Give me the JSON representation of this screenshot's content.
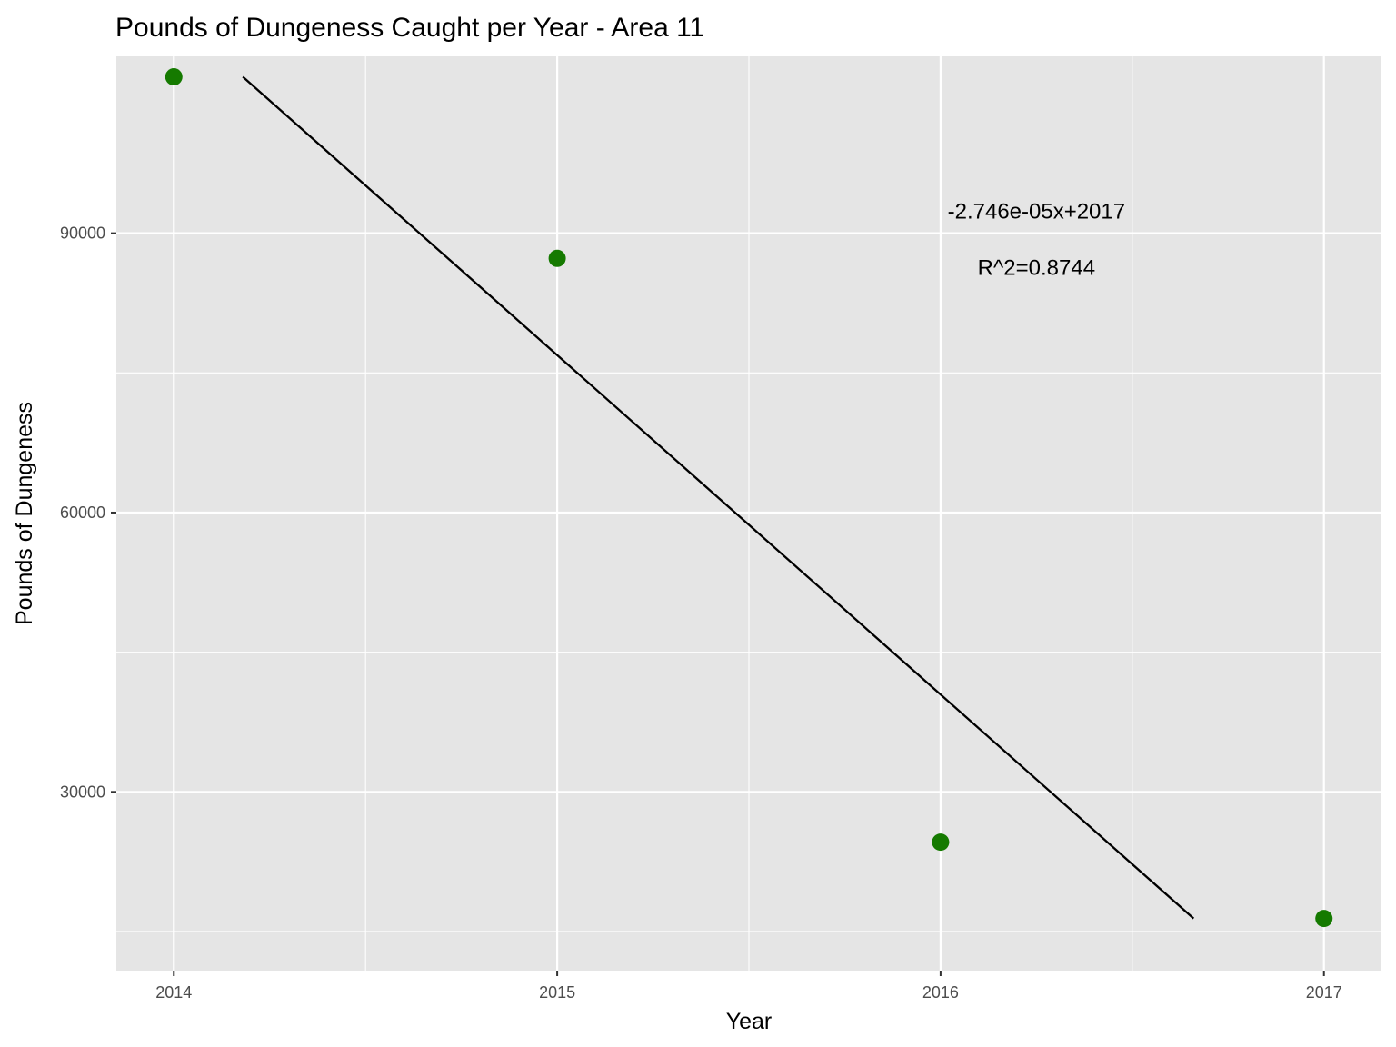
{
  "chart_data": {
    "type": "scatter",
    "title": "Pounds of Dungeness Caught per Year - Area 11",
    "xlabel": "Year",
    "ylabel": "Pounds of Dungeness",
    "x_ticks": [
      2014,
      2015,
      2016,
      2017
    ],
    "y_ticks": [
      30000,
      60000,
      90000
    ],
    "xlim": [
      2013.85,
      2017.15
    ],
    "ylim": [
      10800,
      109000
    ],
    "grid": true,
    "legend": "none",
    "series": [
      {
        "type": "scatter",
        "color": "#157a00",
        "points": [
          {
            "x": 2014,
            "y": 106800
          },
          {
            "x": 2015,
            "y": 87300
          },
          {
            "x": 2016,
            "y": 24600
          },
          {
            "x": 2017,
            "y": 16400
          }
        ]
      }
    ],
    "trendline": {
      "color": "#000000",
      "start": {
        "x": 2014.18,
        "y": 106800
      },
      "end": {
        "x": 2016.66,
        "y": 16400
      }
    },
    "annotations": [
      {
        "text": "-2.746e-05x+2017",
        "x": 2016.25,
        "y": 91600
      },
      {
        "text": "R^2=0.8744",
        "x": 2016.25,
        "y": 85500
      }
    ],
    "colors": {
      "panel_background": "#e5e5e5",
      "grid": "#ffffff",
      "point": "#157a00",
      "line": "#000000"
    }
  }
}
